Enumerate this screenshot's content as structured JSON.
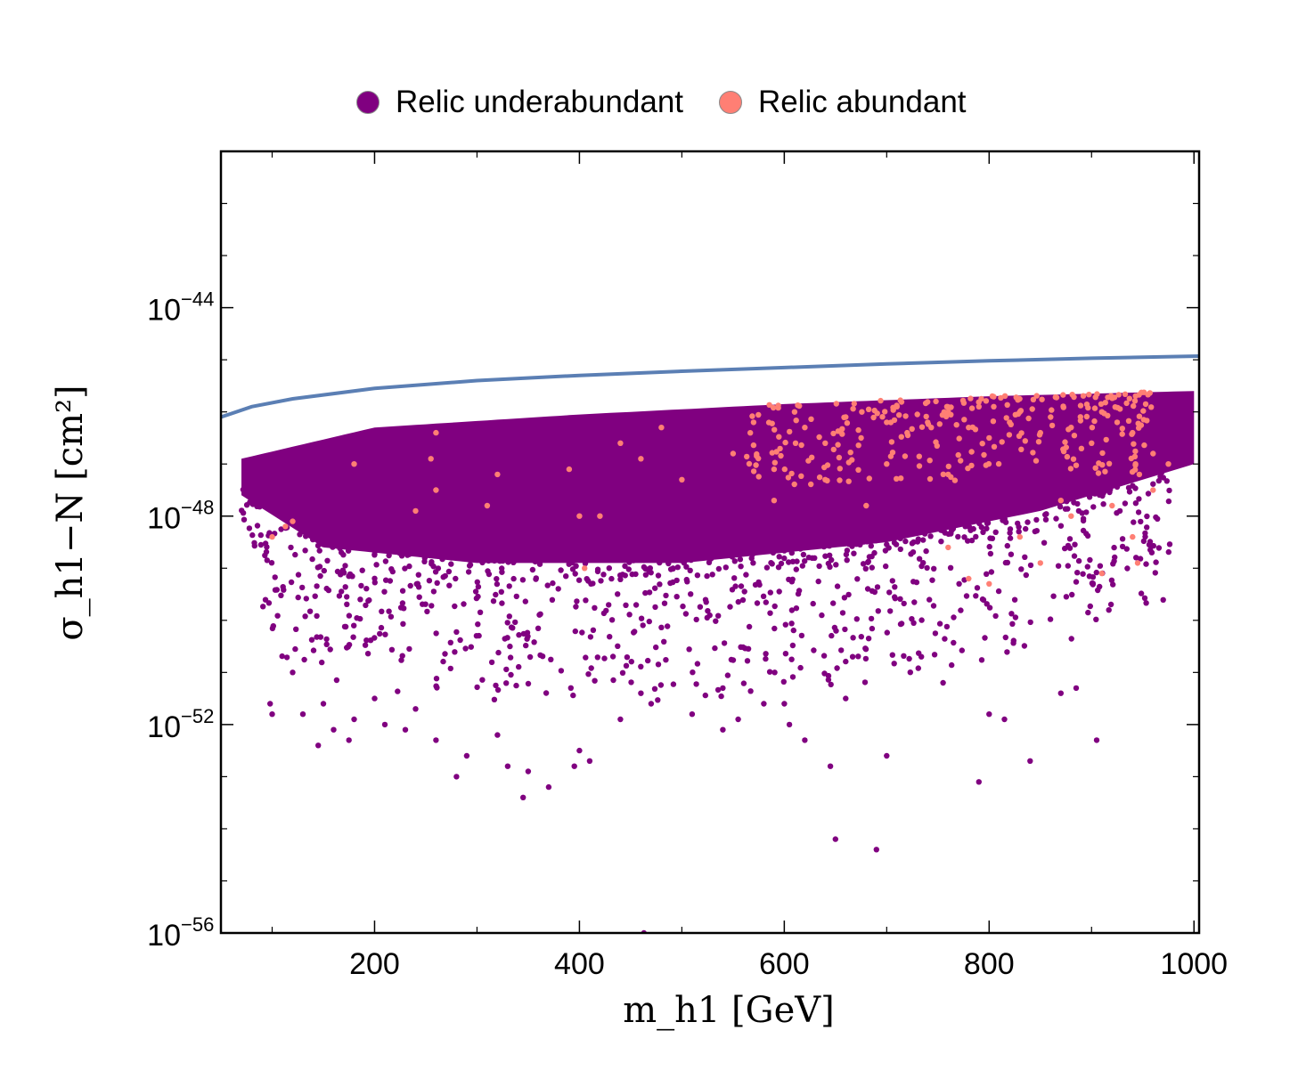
{
  "chart_data": {
    "type": "scatter",
    "xlabel": "m_h1 [GeV]",
    "ylabel": "σ_h1−N [cm²]",
    "x_scale": "linear",
    "y_scale": "log",
    "xlim": [
      50,
      1005
    ],
    "ylim": [
      1e-56,
      1e-41
    ],
    "x_ticks": [
      200,
      400,
      600,
      800,
      1000
    ],
    "x_tick_labels": [
      "200",
      "400",
      "600",
      "800",
      "1000"
    ],
    "y_ticks_log10": [
      -44,
      -48,
      -52,
      -56
    ],
    "y_tick_labels": [
      {
        "base": "10",
        "exp": "−44"
      },
      {
        "base": "10",
        "exp": "−48"
      },
      {
        "base": "10",
        "exp": "−52"
      },
      {
        "base": "10",
        "exp": "−56"
      }
    ],
    "grid": false,
    "legend_position": "top-center",
    "series": [
      {
        "name": "Relic underabundant",
        "color": "#800080",
        "density_band": {
          "x_range": [
            70,
            1000
          ],
          "log10_y_upper": [
            [
              70,
              -46.9
            ],
            [
              200,
              -46.3
            ],
            [
              400,
              -46.05
            ],
            [
              600,
              -45.85
            ],
            [
              800,
              -45.7
            ],
            [
              1000,
              -45.6
            ]
          ],
          "log10_y_dense_lower": [
            [
              70,
              -47.6
            ],
            [
              150,
              -48.6
            ],
            [
              300,
              -48.9
            ],
            [
              500,
              -48.9
            ],
            [
              700,
              -48.5
            ],
            [
              850,
              -47.9
            ],
            [
              950,
              -47.3
            ],
            [
              1000,
              -47.0
            ]
          ]
        },
        "sample_points": [
          [
            100,
            -51.8
          ],
          [
            98,
            -51.6
          ],
          [
            130,
            -51.8
          ],
          [
            145,
            -52.4
          ],
          [
            150,
            -51.6
          ],
          [
            160,
            -52.1
          ],
          [
            175,
            -52.3
          ],
          [
            180,
            -51.9
          ],
          [
            200,
            -51.5
          ],
          [
            210,
            -52.0
          ],
          [
            230,
            -52.1
          ],
          [
            260,
            -52.3
          ],
          [
            280,
            -53.0
          ],
          [
            290,
            -52.6
          ],
          [
            320,
            -52.2
          ],
          [
            330,
            -52.8
          ],
          [
            345,
            -53.4
          ],
          [
            350,
            -52.9
          ],
          [
            370,
            -53.2
          ],
          [
            395,
            -52.8
          ],
          [
            400,
            -52.5
          ],
          [
            410,
            -52.7
          ],
          [
            440,
            -51.9
          ],
          [
            460,
            -51.4
          ],
          [
            470,
            -51.6
          ],
          [
            510,
            -51.8
          ],
          [
            540,
            -52.1
          ],
          [
            555,
            -51.9
          ],
          [
            580,
            -51.6
          ],
          [
            605,
            -52.0
          ],
          [
            620,
            -52.3
          ],
          [
            645,
            -52.8
          ],
          [
            650,
            -54.2
          ],
          [
            660,
            -51.5
          ],
          [
            690,
            -54.4
          ],
          [
            700,
            -52.6
          ],
          [
            755,
            -51.2
          ],
          [
            790,
            -53.1
          ],
          [
            800,
            -51.8
          ],
          [
            815,
            -51.9
          ],
          [
            840,
            -52.7
          ],
          [
            870,
            -51.4
          ],
          [
            885,
            -51.3
          ],
          [
            905,
            -52.3
          ],
          [
            463,
            -56.0
          ],
          [
            540,
            -51.3
          ],
          [
            600,
            -51.6
          ],
          [
            120,
            -51.0
          ],
          [
            240,
            -51.7
          ]
        ]
      },
      {
        "name": "Relic abundant",
        "color": "#ff7f74",
        "sample_points": [
          [
            100,
            -48.4
          ],
          [
            113,
            -48.2
          ],
          [
            120,
            -48.1
          ],
          [
            180,
            -47.0
          ],
          [
            240,
            -47.9
          ],
          [
            260,
            -47.5
          ],
          [
            255,
            -46.9
          ],
          [
            260,
            -46.4
          ],
          [
            310,
            -47.8
          ],
          [
            320,
            -47.2
          ],
          [
            390,
            -47.1
          ],
          [
            400,
            -48.0
          ],
          [
            405,
            -49.0
          ],
          [
            420,
            -48.0
          ],
          [
            440,
            -46.6
          ],
          [
            460,
            -46.9
          ],
          [
            480,
            -46.3
          ],
          [
            500,
            -47.3
          ],
          [
            550,
            -46.8
          ],
          [
            570,
            -46.2
          ],
          [
            590,
            -47.7
          ],
          [
            610,
            -46.0
          ],
          [
            620,
            -46.3
          ],
          [
            640,
            -46.6
          ],
          [
            660,
            -46.1
          ],
          [
            675,
            -46.5
          ],
          [
            700,
            -46.2
          ],
          [
            710,
            -45.9
          ],
          [
            720,
            -46.4
          ],
          [
            740,
            -46.2
          ],
          [
            760,
            -46.0
          ],
          [
            780,
            -46.3
          ],
          [
            790,
            -45.9
          ],
          [
            800,
            -46.5
          ],
          [
            820,
            -46.2
          ],
          [
            830,
            -46.0
          ],
          [
            850,
            -46.4
          ],
          [
            860,
            -46.1
          ],
          [
            880,
            -46.3
          ],
          [
            900,
            -46.6
          ],
          [
            910,
            -46.0
          ],
          [
            925,
            -46.2
          ],
          [
            940,
            -46.4
          ],
          [
            830,
            -48.4
          ],
          [
            850,
            -48.9
          ],
          [
            880,
            -48.0
          ],
          [
            920,
            -47.8
          ],
          [
            940,
            -48.4
          ],
          [
            960,
            -47.5
          ],
          [
            975,
            -47.0
          ],
          [
            910,
            -49.1
          ],
          [
            945,
            -48.9
          ],
          [
            680,
            -47.8
          ],
          [
            760,
            -47.2
          ],
          [
            700,
            -47.0
          ],
          [
            640,
            -47.3
          ],
          [
            590,
            -47.1
          ],
          [
            870,
            -47.7
          ],
          [
            780,
            -49.2
          ],
          [
            800,
            -49.3
          ],
          [
            760,
            -48.6
          ],
          [
            960,
            -46.8
          ]
        ]
      },
      {
        "name": "",
        "type": "line",
        "color": "#5b7fb4",
        "points": [
          [
            50,
            -46.1
          ],
          [
            80,
            -45.9
          ],
          [
            120,
            -45.75
          ],
          [
            200,
            -45.55
          ],
          [
            300,
            -45.4
          ],
          [
            400,
            -45.3
          ],
          [
            500,
            -45.22
          ],
          [
            600,
            -45.15
          ],
          [
            700,
            -45.08
          ],
          [
            800,
            -45.02
          ],
          [
            900,
            -44.97
          ],
          [
            1005,
            -44.93
          ]
        ]
      }
    ]
  }
}
